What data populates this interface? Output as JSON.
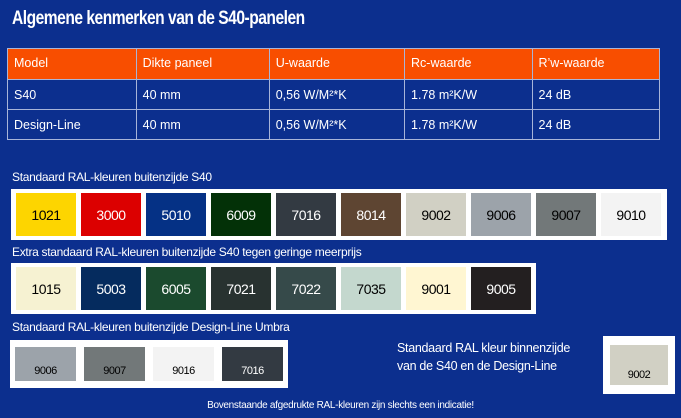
{
  "title": "Algemene kenmerken van de S40-panelen",
  "table": {
    "headers": [
      "Model",
      "Dikte paneel",
      "U-waarde",
      "Rc-waarde",
      "R’w-waarde"
    ],
    "rows": [
      [
        "S40",
        "40 mm",
        "0,56 W/M²*K",
        "1.78 m²K/W",
        "24 dB"
      ],
      [
        "Design-Line",
        "40 mm",
        "0,56 W/M²*K",
        "1.78 m²K/W",
        "24 dB"
      ]
    ]
  },
  "sections": [
    {
      "title": "Standaard RAL-kleuren buitenzijde S40",
      "colors": [
        {
          "code": "1021",
          "bg": "#fdd500",
          "fg": "#000"
        },
        {
          "code": "3000",
          "bg": "#dc0000",
          "fg": "#fff"
        },
        {
          "code": "5010",
          "bg": "#053185",
          "fg": "#fff"
        },
        {
          "code": "6009",
          "bg": "#033107",
          "fg": "#fff"
        },
        {
          "code": "7016",
          "bg": "#333a42",
          "fg": "#fff"
        },
        {
          "code": "8014",
          "bg": "#5e4532",
          "fg": "#fff"
        },
        {
          "code": "9002",
          "bg": "#d1d0c4",
          "fg": "#000"
        },
        {
          "code": "9006",
          "bg": "#9ca3aa",
          "fg": "#000"
        },
        {
          "code": "9007",
          "bg": "#727879",
          "fg": "#000"
        },
        {
          "code": "9010",
          "bg": "#f3f3f3",
          "fg": "#000"
        }
      ]
    },
    {
      "title": "Extra standaard RAL-kleuren buitenzijde S40 tegen geringe meerprijs",
      "colors": [
        {
          "code": "1015",
          "bg": "#f6f2d2",
          "fg": "#000"
        },
        {
          "code": "5003",
          "bg": "#052b5e",
          "fg": "#fff"
        },
        {
          "code": "6005",
          "bg": "#1b4a2e",
          "fg": "#fff"
        },
        {
          "code": "7021",
          "bg": "#283230",
          "fg": "#fff"
        },
        {
          "code": "7022",
          "bg": "#364a4a",
          "fg": "#fff"
        },
        {
          "code": "7035",
          "bg": "#c4d8ce",
          "fg": "#000"
        },
        {
          "code": "9001",
          "bg": "#fff6d2",
          "fg": "#000"
        },
        {
          "code": "9005",
          "bg": "#231f20",
          "fg": "#fff"
        }
      ]
    },
    {
      "title": "Standaard RAL-kleuren buitenzijde Design-Line Umbra",
      "colors": [
        {
          "code": "9006",
          "bg": "#9ca3aa",
          "fg": "#000"
        },
        {
          "code": "9007",
          "bg": "#727879",
          "fg": "#000"
        },
        {
          "code": "9016",
          "bg": "#f3f3f3",
          "fg": "#000"
        },
        {
          "code": "7016",
          "bg": "#333a42",
          "fg": "#fff"
        }
      ]
    }
  ],
  "inside": {
    "line1": "Standaard RAL kleur binnenzijde",
    "line2": "van de S40 en de Design-Line",
    "color": {
      "code": "9002",
      "bg": "#d1d0c4",
      "fg": "#000"
    }
  },
  "footer": "Bovenstaande afgedrukte RAL-kleuren zijn slechts een indicatie!"
}
